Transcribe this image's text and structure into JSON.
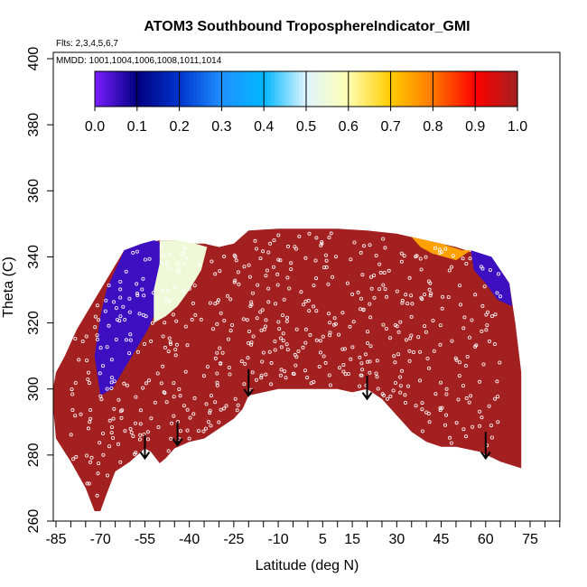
{
  "chart_data": {
    "type": "heatmap",
    "title": "ATOM3 Southbound TroposphereIndicator_GMI",
    "flights_note": "Flts: 2,3,4,5,6,7",
    "dates_note": "MMDD: 1001,1004,1006,1008,1011,1014",
    "xlabel": "Latitude (deg N)",
    "ylabel": "Theta (C)",
    "xlim": [
      -90,
      85
    ],
    "ylim": [
      260,
      405
    ],
    "x_ticks": [
      -85,
      -80,
      -75,
      -70,
      -65,
      -60,
      -55,
      -50,
      -45,
      -40,
      -35,
      -30,
      -25,
      -20,
      -15,
      -10,
      -5,
      0,
      5,
      10,
      15,
      20,
      25,
      30,
      35,
      40,
      45,
      50,
      55,
      60,
      65,
      70,
      75,
      80,
      85
    ],
    "x_tick_labels": [
      "-85",
      "-70",
      "-55",
      "-40",
      "-25",
      "-10",
      "5",
      "15",
      "30",
      "45",
      "60",
      "75"
    ],
    "x_label_positions": [
      -85,
      -70,
      -55,
      -40,
      -25,
      -10,
      5,
      15,
      30,
      45,
      60,
      75
    ],
    "y_ticks": [
      260,
      280,
      300,
      320,
      340,
      360,
      380,
      400
    ],
    "y_tick_labels": [
      "260",
      "280",
      "300",
      "320",
      "340",
      "360",
      "380",
      "400"
    ],
    "colorbar": {
      "ticks": [
        "0.0",
        "0.1",
        "0.2",
        "0.3",
        "0.4",
        "0.5",
        "0.6",
        "0.7",
        "0.8",
        "0.9",
        "1.0"
      ],
      "range": [
        0,
        1
      ]
    },
    "colors": {
      "troposphere": "#a32020",
      "low": "#8b2be2",
      "mid": "#1f90ff",
      "high": "#ff2a00",
      "points": "#ffffff"
    },
    "top_boundary": [
      [
        -85,
        305
      ],
      [
        -82,
        310
      ],
      [
        -78,
        318
      ],
      [
        -74,
        324
      ],
      [
        -70,
        330
      ],
      [
        -66,
        336
      ],
      [
        -62,
        342
      ],
      [
        -56,
        344
      ],
      [
        -50,
        345
      ],
      [
        -45,
        345
      ],
      [
        -40,
        344
      ],
      [
        -35,
        344
      ],
      [
        -30,
        343
      ],
      [
        -25,
        344
      ],
      [
        -20,
        348
      ],
      [
        -10,
        348.5
      ],
      [
        0,
        348.5
      ],
      [
        10,
        348.5
      ],
      [
        20,
        348
      ],
      [
        30,
        347
      ],
      [
        35,
        346
      ],
      [
        40,
        345
      ],
      [
        50,
        343
      ],
      [
        60,
        340
      ],
      [
        65,
        336
      ],
      [
        68,
        332
      ],
      [
        70,
        320
      ],
      [
        72,
        305
      ],
      [
        72,
        280
      ]
    ],
    "bottom_boundary": [
      [
        72,
        276
      ],
      [
        65,
        278
      ],
      [
        58,
        281
      ],
      [
        50,
        282.5
      ],
      [
        45,
        282.5
      ],
      [
        40,
        284
      ],
      [
        35,
        287
      ],
      [
        30,
        292
      ],
      [
        25,
        297
      ],
      [
        20,
        300
      ],
      [
        15,
        299
      ],
      [
        10,
        300
      ],
      [
        0,
        300
      ],
      [
        -10,
        300
      ],
      [
        -15,
        299
      ],
      [
        -20,
        298
      ],
      [
        -22,
        294
      ],
      [
        -25,
        291
      ],
      [
        -30,
        288
      ],
      [
        -35,
        285
      ],
      [
        -40,
        284
      ],
      [
        -45,
        282
      ],
      [
        -48,
        279
      ],
      [
        -50,
        277.5
      ],
      [
        -53,
        281
      ],
      [
        -55,
        282
      ],
      [
        -60,
        278
      ],
      [
        -65,
        275
      ],
      [
        -68,
        268
      ],
      [
        -70,
        263
      ],
      [
        -72,
        263
      ],
      [
        -75,
        270
      ],
      [
        -80,
        278
      ],
      [
        -85,
        285
      ],
      [
        -86,
        295
      ],
      [
        -86,
        300
      ],
      [
        -85,
        305
      ]
    ],
    "stratosphere_regions": [
      {
        "name": "southern_polar_patch",
        "value": 0.05,
        "polygon": [
          [
            -68,
            330
          ],
          [
            -62,
            342
          ],
          [
            -56,
            344
          ],
          [
            -52,
            345
          ],
          [
            -48,
            344
          ],
          [
            -48,
            335
          ],
          [
            -50,
            326
          ],
          [
            -54,
            318
          ],
          [
            -58,
            312
          ],
          [
            -62,
            306
          ],
          [
            -66,
            300
          ],
          [
            -70,
            298
          ],
          [
            -72,
            310
          ],
          [
            -70,
            322
          ]
        ]
      },
      {
        "name": "southern_transition",
        "value": 0.55,
        "polygon": [
          [
            -50,
            345
          ],
          [
            -44,
            345
          ],
          [
            -38,
            344
          ],
          [
            -34,
            343
          ],
          [
            -36,
            336
          ],
          [
            -40,
            330
          ],
          [
            -44,
            325
          ],
          [
            -48,
            322
          ],
          [
            -52,
            320
          ],
          [
            -52,
            330
          ],
          [
            -50,
            338
          ]
        ]
      },
      {
        "name": "northern_patch",
        "value": 0.05,
        "polygon": [
          [
            55,
            342
          ],
          [
            62,
            340
          ],
          [
            68,
            332
          ],
          [
            69,
            325
          ],
          [
            64,
            327
          ],
          [
            60,
            332
          ],
          [
            56,
            336
          ]
        ]
      },
      {
        "name": "northern_transition",
        "value": 0.75,
        "polygon": [
          [
            35,
            346
          ],
          [
            45,
            344
          ],
          [
            52,
            342
          ],
          [
            55,
            342
          ],
          [
            50,
            339
          ],
          [
            42,
            341
          ],
          [
            38,
            343
          ]
        ]
      }
    ],
    "annotations": [
      {
        "type": "arrow",
        "x": -55,
        "y_from": 286,
        "y_to": 279
      },
      {
        "type": "arrow",
        "x": -44,
        "y_from": 290,
        "y_to": 283
      },
      {
        "type": "arrow",
        "x": -20,
        "y_from": 306,
        "y_to": 298
      },
      {
        "type": "arrow",
        "x": 20,
        "y_from": 304,
        "y_to": 297
      },
      {
        "type": "arrow",
        "x": 60,
        "y_from": 287,
        "y_to": 279
      }
    ]
  }
}
